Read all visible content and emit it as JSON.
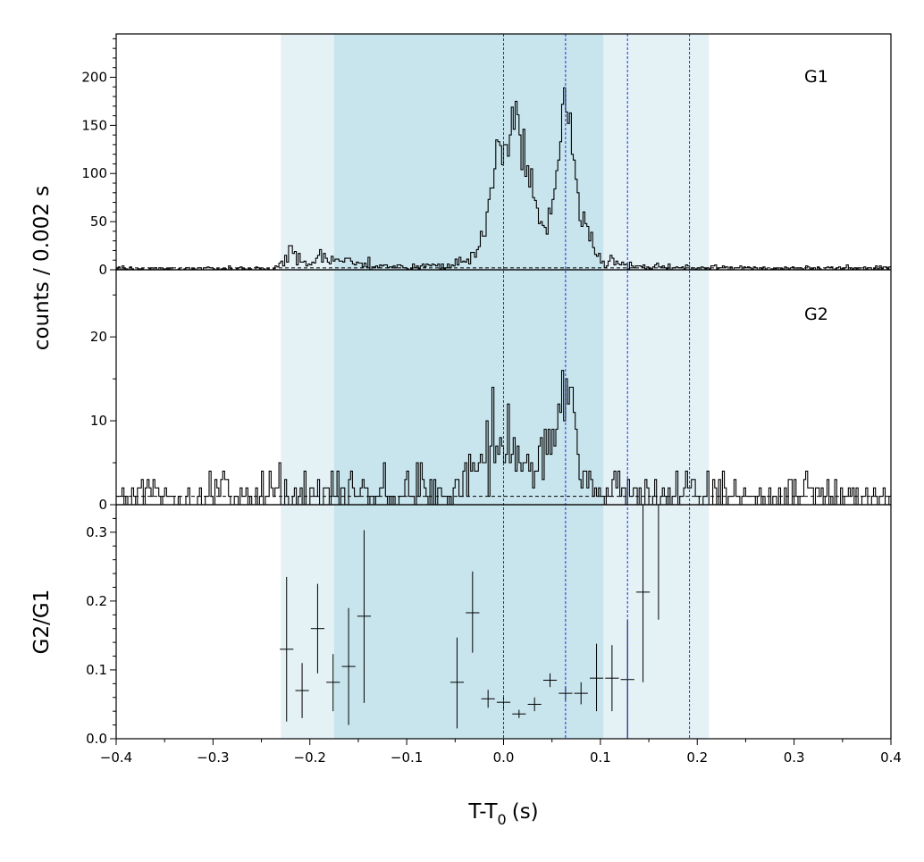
{
  "chart_data": {
    "type": "line",
    "xlabel": "T-T",
    "xlabel_sub": "0",
    "xlabel_unit": "(s)",
    "xlim": [
      -0.4,
      0.4
    ],
    "x_ticks": [
      -0.4,
      -0.3,
      -0.2,
      -0.1,
      0.0,
      0.1,
      0.2,
      0.3,
      0.4
    ],
    "x_tick_labels": [
      "−0.4",
      "−0.3",
      "−0.2",
      "−0.1",
      "0.0",
      "0.1",
      "0.2",
      "0.3",
      "0.4"
    ],
    "shaded_intervals": [
      {
        "range": [
          -0.23,
          0.212
        ],
        "color": "#e4f2f6"
      },
      {
        "range": [
          -0.175,
          0.103
        ],
        "color": "#c8e5ed"
      }
    ],
    "vertical_lines": [
      0.0,
      0.064,
      0.128,
      0.192
    ],
    "vertical_line_color": "#1f2fe0",
    "shared_ylabel": "counts /  0.002 s",
    "panels": [
      {
        "name": "G1",
        "label": "G1",
        "ylim": [
          0,
          245
        ],
        "y_ticks": [
          0,
          50,
          100,
          150,
          200
        ],
        "y_tick_labels": [
          "0",
          "50",
          "100",
          "150",
          "200"
        ],
        "background_level": 2,
        "anchors": [
          [
            -0.4,
            1
          ],
          [
            -0.24,
            1
          ],
          [
            -0.232,
            4
          ],
          [
            -0.222,
            12
          ],
          [
            -0.219,
            25
          ],
          [
            -0.214,
            10
          ],
          [
            -0.2,
            8
          ],
          [
            -0.19,
            14
          ],
          [
            -0.18,
            12
          ],
          [
            -0.17,
            9
          ],
          [
            -0.16,
            7
          ],
          [
            -0.14,
            5
          ],
          [
            -0.1,
            4
          ],
          [
            -0.06,
            4
          ],
          [
            -0.045,
            7
          ],
          [
            -0.035,
            10
          ],
          [
            -0.028,
            18
          ],
          [
            -0.022,
            35
          ],
          [
            -0.016,
            60
          ],
          [
            -0.01,
            95
          ],
          [
            -0.006,
            130
          ],
          [
            -0.002,
            140
          ],
          [
            0.003,
            128
          ],
          [
            0.008,
            150
          ],
          [
            0.013,
            165
          ],
          [
            0.018,
            150
          ],
          [
            0.023,
            120
          ],
          [
            0.028,
            90
          ],
          [
            0.034,
            65
          ],
          [
            0.04,
            50
          ],
          [
            0.046,
            48
          ],
          [
            0.052,
            70
          ],
          [
            0.057,
            110
          ],
          [
            0.061,
            150
          ],
          [
            0.064,
            165
          ],
          [
            0.068,
            140
          ],
          [
            0.073,
            100
          ],
          [
            0.078,
            70
          ],
          [
            0.083,
            50
          ],
          [
            0.088,
            40
          ],
          [
            0.093,
            25
          ],
          [
            0.098,
            10
          ],
          [
            0.105,
            6
          ],
          [
            0.115,
            9
          ],
          [
            0.125,
            6
          ],
          [
            0.14,
            4
          ],
          [
            0.16,
            3
          ],
          [
            0.2,
            2
          ],
          [
            0.25,
            2
          ],
          [
            0.3,
            1
          ],
          [
            0.4,
            2
          ]
        ]
      },
      {
        "name": "G2",
        "label": "G2",
        "ylim": [
          0,
          28
        ],
        "y_ticks": [
          0,
          10,
          20
        ],
        "y_tick_labels": [
          "0",
          "10",
          "20"
        ],
        "background_level": 1,
        "anchors": [
          [
            -0.4,
            1.2
          ],
          [
            -0.05,
            1.5
          ],
          [
            -0.04,
            2.5
          ],
          [
            -0.03,
            4
          ],
          [
            -0.015,
            5.5
          ],
          [
            -0.005,
            6.5
          ],
          [
            0.005,
            7
          ],
          [
            0.015,
            5
          ],
          [
            0.025,
            3.5
          ],
          [
            0.035,
            4
          ],
          [
            0.045,
            6
          ],
          [
            0.052,
            9
          ],
          [
            0.058,
            11
          ],
          [
            0.063,
            12
          ],
          [
            0.068,
            10
          ],
          [
            0.075,
            8
          ],
          [
            0.083,
            5
          ],
          [
            0.09,
            3
          ],
          [
            0.1,
            1.5
          ],
          [
            0.4,
            1.2
          ]
        ]
      }
    ],
    "ratio_panel": {
      "ylabel": "G2/G1",
      "ylim": [
        0,
        0.34
      ],
      "y_ticks": [
        0.0,
        0.1,
        0.2,
        0.3
      ],
      "y_tick_labels": [
        "0.0",
        "0.1",
        "0.2",
        "0.3"
      ],
      "points": [
        {
          "x": -0.224,
          "y": 0.13,
          "xerr": 0.007,
          "ylo": 0.025,
          "yhi": 0.235
        },
        {
          "x": -0.208,
          "y": 0.07,
          "xerr": 0.007,
          "ylo": 0.03,
          "yhi": 0.11
        },
        {
          "x": -0.192,
          "y": 0.16,
          "xerr": 0.007,
          "ylo": 0.095,
          "yhi": 0.225
        },
        {
          "x": -0.176,
          "y": 0.082,
          "xerr": 0.007,
          "ylo": 0.04,
          "yhi": 0.123
        },
        {
          "x": -0.16,
          "y": 0.105,
          "xerr": 0.007,
          "ylo": 0.02,
          "yhi": 0.19
        },
        {
          "x": -0.144,
          "y": 0.178,
          "xerr": 0.007,
          "ylo": 0.052,
          "yhi": 0.303
        },
        {
          "x": -0.048,
          "y": 0.082,
          "xerr": 0.007,
          "ylo": 0.015,
          "yhi": 0.147
        },
        {
          "x": -0.032,
          "y": 0.183,
          "xerr": 0.007,
          "ylo": 0.125,
          "yhi": 0.243
        },
        {
          "x": -0.016,
          "y": 0.058,
          "xerr": 0.007,
          "ylo": 0.045,
          "yhi": 0.071
        },
        {
          "x": 0.0,
          "y": 0.053,
          "xerr": 0.007,
          "ylo": 0.044,
          "yhi": 0.062
        },
        {
          "x": 0.016,
          "y": 0.036,
          "xerr": 0.007,
          "ylo": 0.03,
          "yhi": 0.042
        },
        {
          "x": 0.032,
          "y": 0.05,
          "xerr": 0.007,
          "ylo": 0.04,
          "yhi": 0.06
        },
        {
          "x": 0.048,
          "y": 0.085,
          "xerr": 0.007,
          "ylo": 0.075,
          "yhi": 0.095
        },
        {
          "x": 0.064,
          "y": 0.066,
          "xerr": 0.007,
          "ylo": 0.056,
          "yhi": 0.076
        },
        {
          "x": 0.08,
          "y": 0.066,
          "xerr": 0.007,
          "ylo": 0.05,
          "yhi": 0.082
        },
        {
          "x": 0.096,
          "y": 0.088,
          "xerr": 0.007,
          "ylo": 0.04,
          "yhi": 0.138
        },
        {
          "x": 0.112,
          "y": 0.088,
          "xerr": 0.007,
          "ylo": 0.04,
          "yhi": 0.136
        },
        {
          "x": 0.128,
          "y": 0.086,
          "xerr": 0.007,
          "ylo": 0.0,
          "yhi": 0.172
        },
        {
          "x": 0.144,
          "y": 0.213,
          "xerr": 0.007,
          "ylo": 0.082,
          "yhi": 0.34
        },
        {
          "x": 0.16,
          "y": 0.34,
          "xerr": 0.007,
          "ylo": 0.173,
          "yhi": 0.34
        }
      ]
    },
    "grid": false,
    "legend": "none"
  }
}
